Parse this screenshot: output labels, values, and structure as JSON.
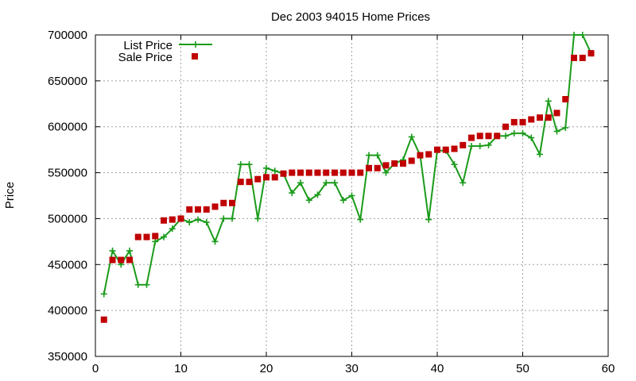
{
  "chart_data": {
    "type": "line",
    "title": "Dec 2003 94015 Home Prices",
    "xlabel": "",
    "ylabel": "Price",
    "xlim": [
      0,
      60
    ],
    "ylim": [
      350000,
      700000
    ],
    "xticks": [
      "0",
      "10",
      "20",
      "30",
      "40",
      "50",
      "60"
    ],
    "yticks": [
      "350000",
      "400000",
      "450000",
      "500000",
      "550000",
      "600000",
      "650000",
      "700000"
    ],
    "grid": true,
    "legend_position": "top-left",
    "series": [
      {
        "name": "List Price",
        "style": "line+cross",
        "color": "#1a9b1a",
        "points": [
          [
            1,
            418000
          ],
          [
            2,
            465000
          ],
          [
            3,
            450000
          ],
          [
            4,
            465000
          ],
          [
            5,
            428000
          ],
          [
            6,
            428000
          ],
          [
            7,
            475000
          ],
          [
            8,
            480000
          ],
          [
            9,
            489000
          ],
          [
            10,
            500000
          ],
          [
            11,
            496000
          ],
          [
            12,
            499000
          ],
          [
            13,
            496000
          ],
          [
            14,
            475000
          ],
          [
            15,
            500000
          ],
          [
            16,
            500000
          ],
          [
            17,
            559000
          ],
          [
            18,
            559000
          ],
          [
            19,
            500000
          ],
          [
            20,
            555000
          ],
          [
            21,
            552000
          ],
          [
            22,
            549000
          ],
          [
            23,
            528000
          ],
          [
            24,
            539000
          ],
          [
            25,
            520000
          ],
          [
            26,
            526000
          ],
          [
            27,
            539000
          ],
          [
            28,
            539000
          ],
          [
            29,
            520000
          ],
          [
            30,
            525000
          ],
          [
            31,
            499000
          ],
          [
            32,
            569000
          ],
          [
            33,
            569000
          ],
          [
            34,
            550000
          ],
          [
            35,
            560000
          ],
          [
            36,
            564000
          ],
          [
            37,
            589000
          ],
          [
            38,
            569000
          ],
          [
            39,
            499000
          ],
          [
            40,
            574000
          ],
          [
            41,
            574000
          ],
          [
            42,
            559000
          ],
          [
            43,
            539000
          ],
          [
            44,
            579000
          ],
          [
            45,
            579000
          ],
          [
            46,
            580000
          ],
          [
            47,
            590000
          ],
          [
            48,
            590000
          ],
          [
            49,
            593000
          ],
          [
            50,
            593000
          ],
          [
            51,
            588000
          ],
          [
            52,
            570000
          ],
          [
            53,
            628000
          ],
          [
            54,
            595000
          ],
          [
            55,
            599000
          ],
          [
            56,
            700000
          ],
          [
            57,
            700000
          ],
          [
            58,
            680000
          ]
        ]
      },
      {
        "name": "Sale Price",
        "style": "square-points",
        "color": "#c00000",
        "points": [
          [
            1,
            390000
          ],
          [
            2,
            455000
          ],
          [
            3,
            455000
          ],
          [
            4,
            455000
          ],
          [
            5,
            480000
          ],
          [
            6,
            480000
          ],
          [
            7,
            481000
          ],
          [
            8,
            498000
          ],
          [
            9,
            499000
          ],
          [
            10,
            500000
          ],
          [
            11,
            510000
          ],
          [
            12,
            510000
          ],
          [
            13,
            510000
          ],
          [
            14,
            513000
          ],
          [
            15,
            517000
          ],
          [
            16,
            517000
          ],
          [
            17,
            540000
          ],
          [
            18,
            540000
          ],
          [
            19,
            543000
          ],
          [
            20,
            545000
          ],
          [
            21,
            545000
          ],
          [
            22,
            549000
          ],
          [
            23,
            550000
          ],
          [
            24,
            550000
          ],
          [
            25,
            550000
          ],
          [
            26,
            550000
          ],
          [
            27,
            550000
          ],
          [
            28,
            550000
          ],
          [
            29,
            550000
          ],
          [
            30,
            550000
          ],
          [
            31,
            550000
          ],
          [
            32,
            555000
          ],
          [
            33,
            555000
          ],
          [
            34,
            558000
          ],
          [
            35,
            560000
          ],
          [
            36,
            560000
          ],
          [
            37,
            563000
          ],
          [
            38,
            569000
          ],
          [
            39,
            570000
          ],
          [
            40,
            575000
          ],
          [
            41,
            575000
          ],
          [
            42,
            576000
          ],
          [
            43,
            580000
          ],
          [
            44,
            588000
          ],
          [
            45,
            590000
          ],
          [
            46,
            590000
          ],
          [
            47,
            590000
          ],
          [
            48,
            600000
          ],
          [
            49,
            605000
          ],
          [
            50,
            605000
          ],
          [
            51,
            608000
          ],
          [
            52,
            610000
          ],
          [
            53,
            610000
          ],
          [
            54,
            615000
          ],
          [
            55,
            630000
          ],
          [
            56,
            675000
          ],
          [
            57,
            675000
          ],
          [
            58,
            680000
          ]
        ]
      }
    ]
  }
}
